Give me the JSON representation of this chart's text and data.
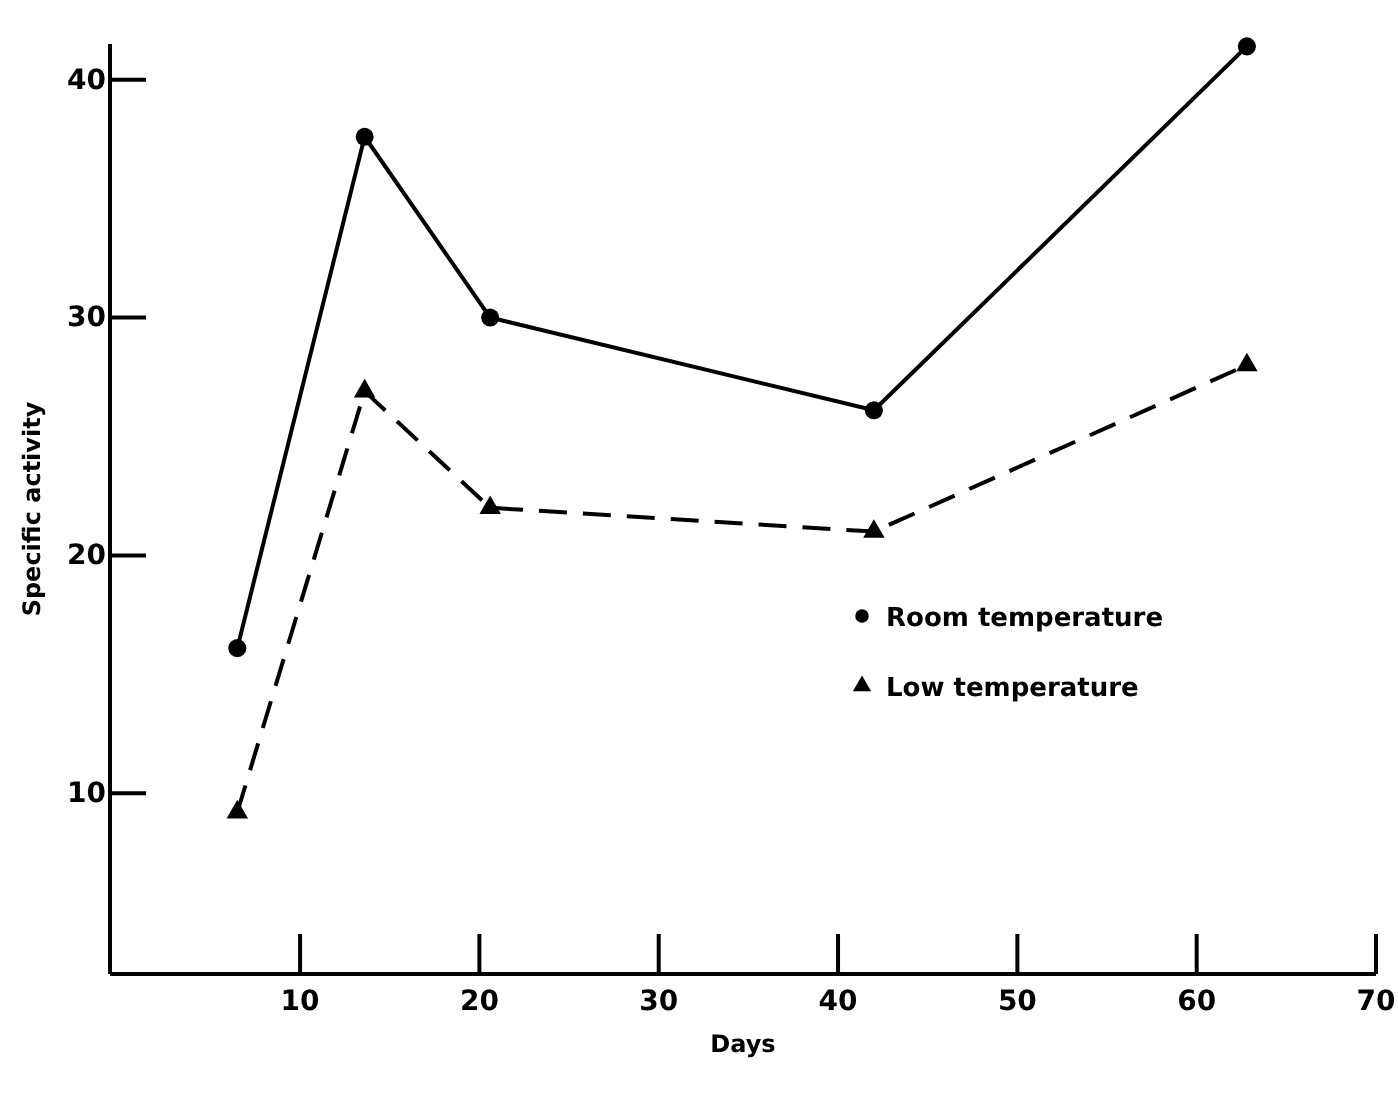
{
  "chart_data": {
    "type": "line",
    "xlabel": "Days",
    "ylabel": "Specific activity",
    "xlim": [
      -0.6,
      70
    ],
    "ylim": [
      2.4,
      41.5
    ],
    "xticks": [
      10,
      20,
      30,
      40,
      50,
      60,
      70
    ],
    "yticks": [
      10,
      20,
      30,
      40
    ],
    "grid": false,
    "legend": "right",
    "series": [
      {
        "name": "Room temperature",
        "color": "#000000",
        "marker": "circle",
        "line_style": "solid",
        "x": [
          6.5,
          13.6,
          20.6,
          42,
          62.8
        ],
        "values": [
          16.1,
          37.6,
          30.0,
          26.1,
          41.4
        ]
      },
      {
        "name": "Low temperature",
        "color": "#000000",
        "marker": "triangle",
        "line_style": "dashed",
        "x": [
          6.5,
          13.6,
          20.6,
          42,
          62.8
        ],
        "values": [
          9.2,
          26.9,
          22.0,
          21.0,
          28.0
        ]
      }
    ]
  }
}
